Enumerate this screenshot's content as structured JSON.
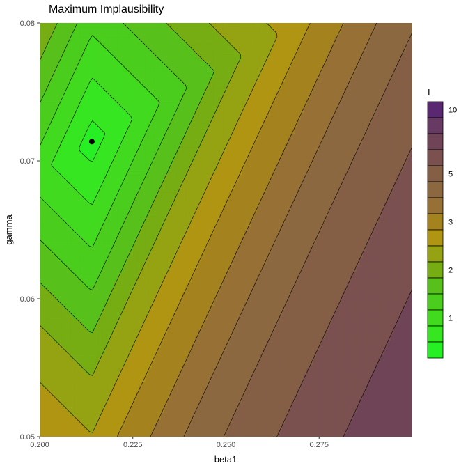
{
  "chart_data": {
    "type": "heatmap",
    "subtype": "filled-contour",
    "title": "Maximum Implausibility",
    "xlabel": "beta1",
    "ylabel": "gamma",
    "xlim": [
      0.2,
      0.3
    ],
    "ylim": [
      0.05,
      0.08
    ],
    "x_ticks": [
      0.2,
      0.225,
      0.25,
      0.275
    ],
    "x_tick_labels": [
      "0.200",
      "0.225",
      "0.250",
      "0.275"
    ],
    "y_ticks": [
      0.05,
      0.06,
      0.07,
      0.08
    ],
    "y_tick_labels": [
      "0.05",
      "0.06",
      "0.07",
      "0.08"
    ],
    "minimum_point": {
      "x": 0.214,
      "y": 0.0714
    },
    "contour_levels": [
      0.5,
      0.8,
      1.1,
      1.4,
      1.7,
      2.0,
      2.4,
      2.8,
      3.3,
      3.8,
      4.4,
      5.2,
      6.2,
      7.5,
      9.0
    ],
    "legend": {
      "title": "I",
      "position": "right",
      "colors": [
        "#26f024",
        "#36e620",
        "#41da1e",
        "#4acd1c",
        "#58c01b",
        "#76ad13",
        "#95a313",
        "#b09513",
        "#a4831f",
        "#967034",
        "#8c6840",
        "#855e46",
        "#7b5150",
        "#6f4456",
        "#663a62",
        "#5a2870"
      ],
      "labels": [
        {
          "text": "10",
          "index": 15
        },
        {
          "text": "5",
          "index": 11
        },
        {
          "text": "3",
          "index": 8
        },
        {
          "text": "2",
          "index": 5
        },
        {
          "text": "1",
          "index": 2
        }
      ]
    }
  }
}
